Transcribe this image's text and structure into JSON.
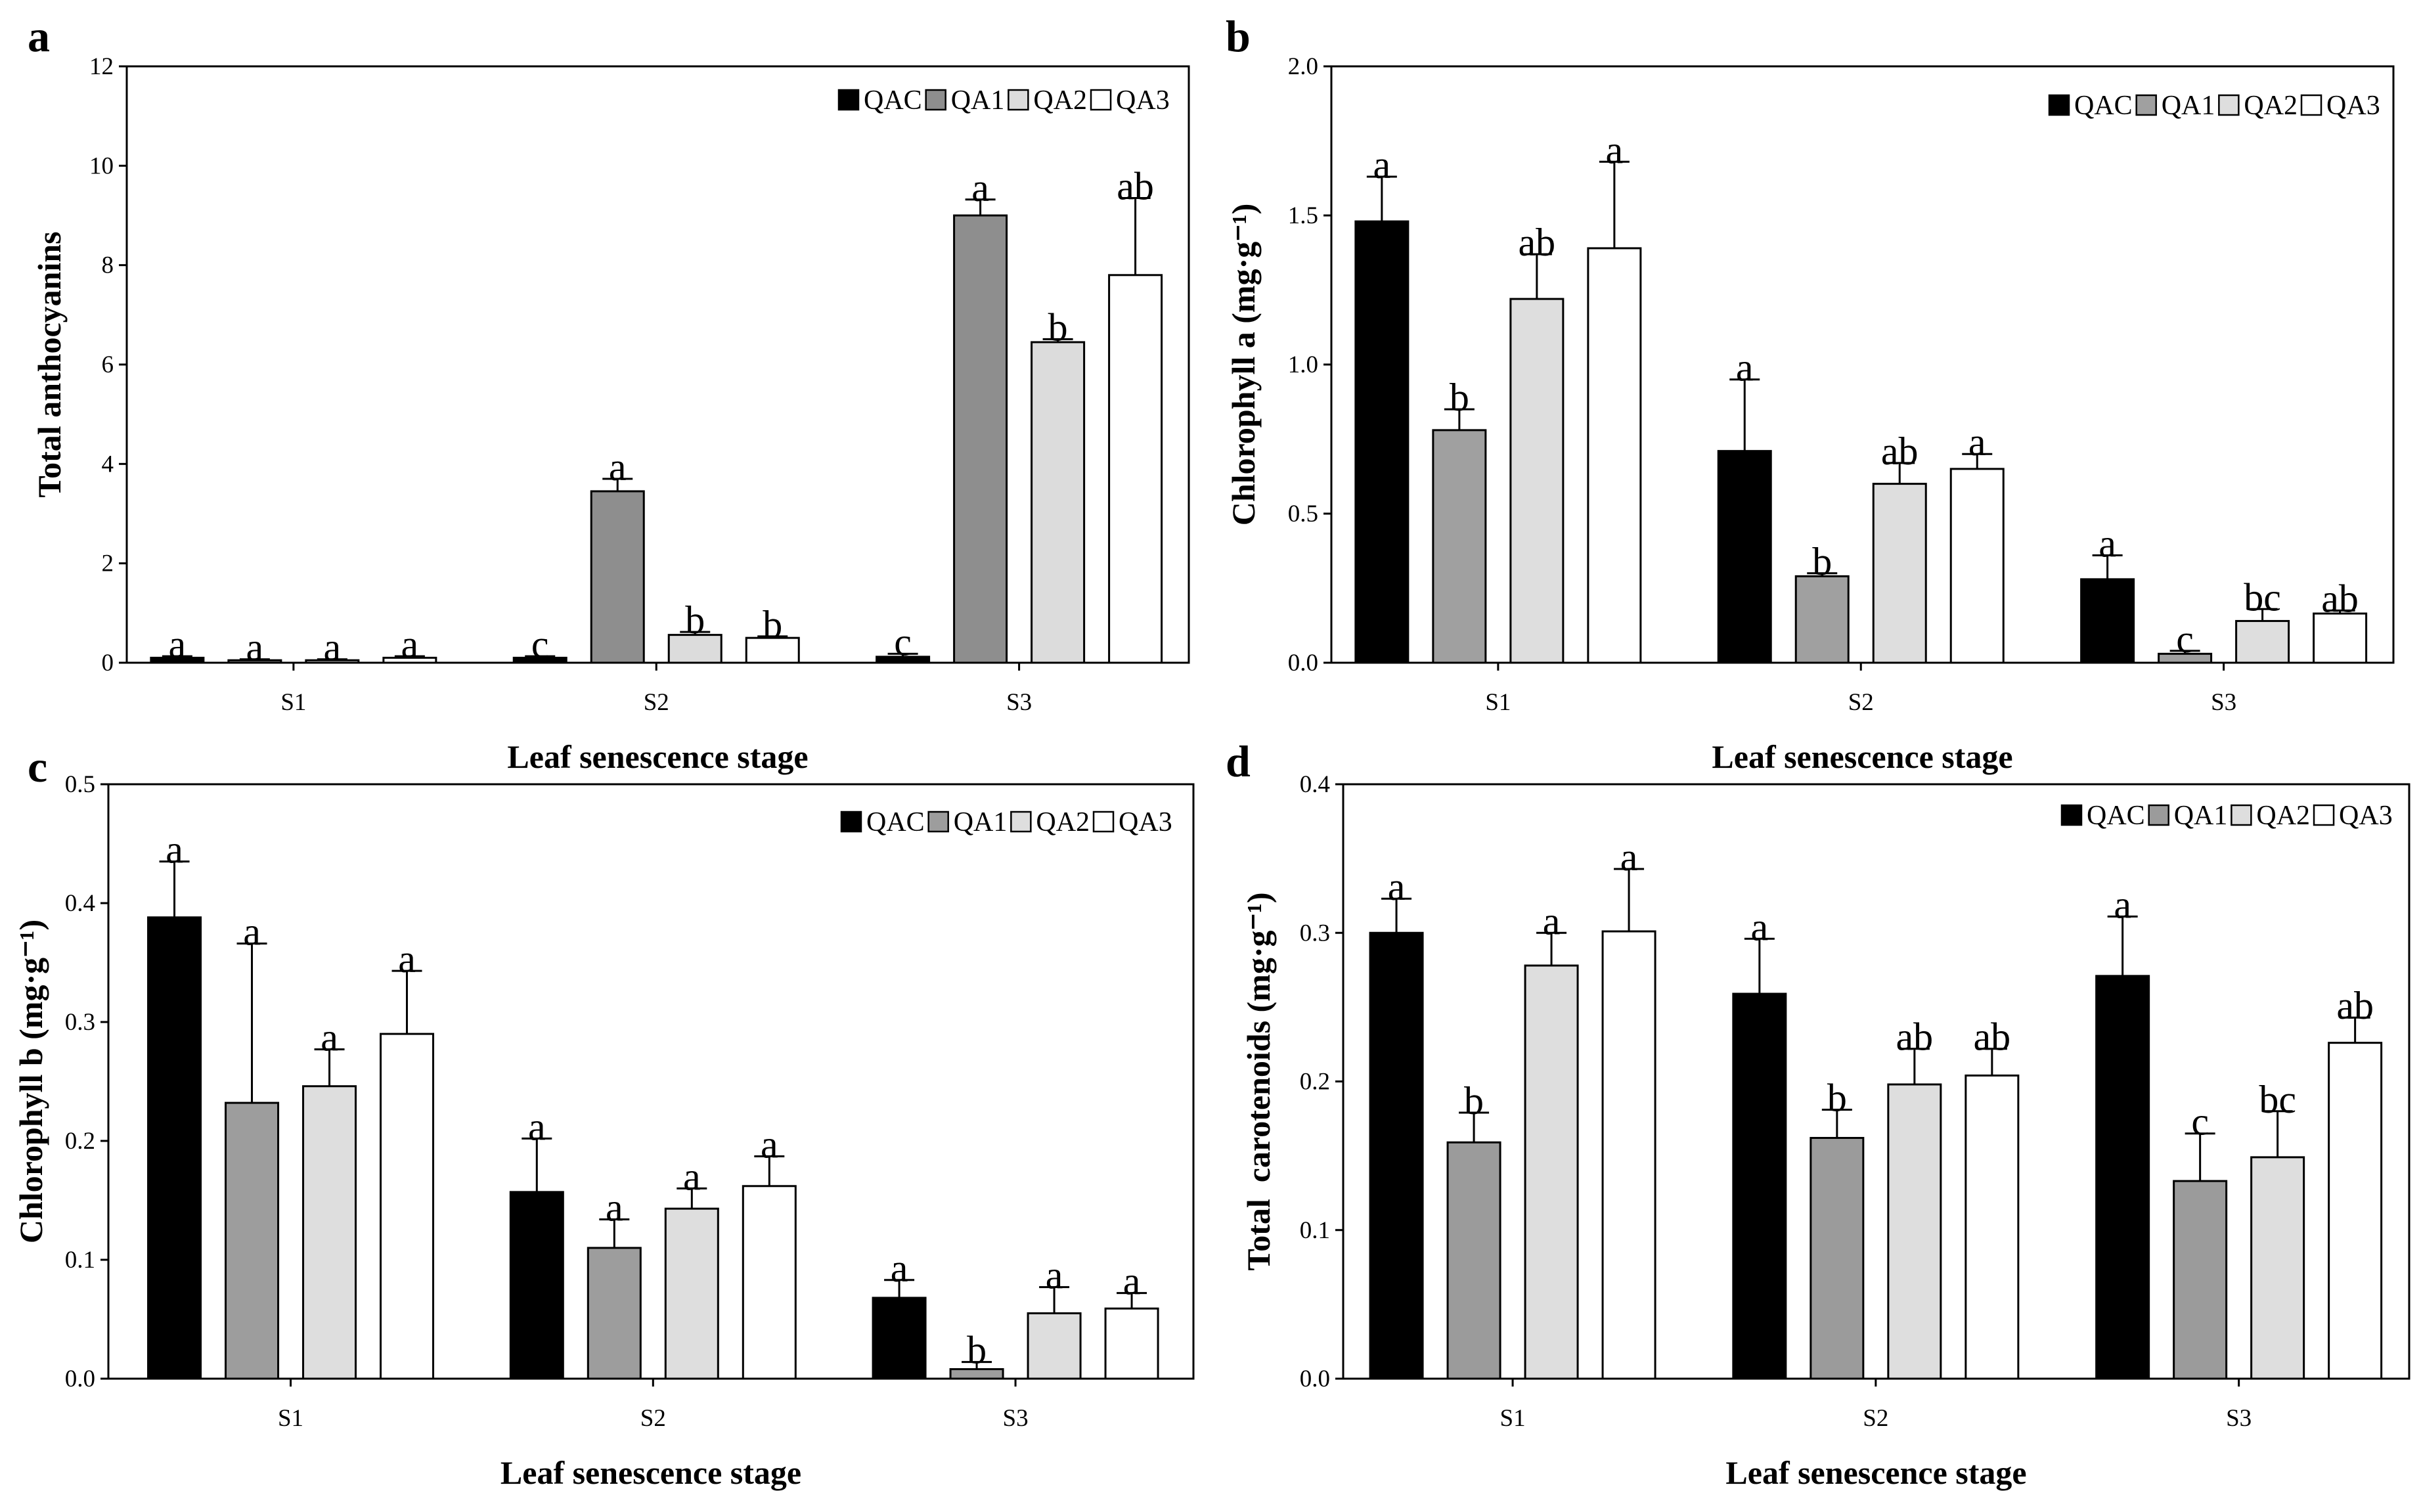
{
  "chart_data": [
    {
      "panel": "a",
      "type": "bar",
      "xlabel": "Leaf senescence stage",
      "ylabel": "Total anthocyanins",
      "ylim": [
        0,
        12
      ],
      "yticks": [
        "0",
        "2",
        "4",
        "6",
        "8",
        "10",
        "12"
      ],
      "grid": false,
      "categories": [
        "S1",
        "S2",
        "S3"
      ],
      "series": [
        {
          "name": "QAC",
          "color": "#000000",
          "values": [
            0.1,
            0.1,
            0.12
          ],
          "errors": [
            0.03,
            0.03,
            0.06
          ],
          "letters": [
            "a",
            "c",
            "c"
          ]
        },
        {
          "name": "QA1",
          "color": "#8e8e8e",
          "values": [
            0.05,
            3.45,
            9.0
          ],
          "errors": [
            0.02,
            0.25,
            0.32
          ],
          "letters": [
            "a",
            "a",
            "a"
          ]
        },
        {
          "name": "QA2",
          "color": "#dcdcdc",
          "values": [
            0.05,
            0.56,
            6.45
          ],
          "errors": [
            0.02,
            0.06,
            0.06
          ],
          "letters": [
            "a",
            "b",
            "b"
          ]
        },
        {
          "name": "QA3",
          "color": "#ffffff",
          "values": [
            0.1,
            0.5,
            7.8
          ],
          "errors": [
            0.03,
            0.03,
            1.55
          ],
          "letters": [
            "a",
            "b",
            "ab"
          ]
        }
      ]
    },
    {
      "panel": "b",
      "type": "bar",
      "xlabel": "Leaf senescence stage",
      "ylabel": "Chlorophyll a (mg·g⁻¹)",
      "ylim": [
        0,
        2.0
      ],
      "yticks": [
        "0.0",
        "0.5",
        "1.0",
        "1.5",
        "2.0"
      ],
      "grid": false,
      "categories": [
        "S1",
        "S2",
        "S3"
      ],
      "series": [
        {
          "name": "QAC",
          "color": "#000000",
          "values": [
            1.48,
            0.71,
            0.28
          ],
          "errors": [
            0.15,
            0.24,
            0.08
          ],
          "letters": [
            "a",
            "a",
            "a"
          ]
        },
        {
          "name": "QA1",
          "color": "#a0a0a0",
          "values": [
            0.78,
            0.29,
            0.03
          ],
          "errors": [
            0.07,
            0.01,
            0.01
          ],
          "letters": [
            "b",
            "b",
            "c"
          ]
        },
        {
          "name": "QA2",
          "color": "#dedede",
          "values": [
            1.22,
            0.6,
            0.14
          ],
          "errors": [
            0.15,
            0.07,
            0.04
          ],
          "letters": [
            "ab",
            "ab",
            "bc"
          ]
        },
        {
          "name": "QA3",
          "color": "#ffffff",
          "values": [
            1.39,
            0.65,
            0.165
          ],
          "errors": [
            0.29,
            0.05,
            0.01
          ],
          "letters": [
            "a",
            "a",
            "ab"
          ]
        }
      ]
    },
    {
      "panel": "c",
      "type": "bar",
      "xlabel": "Leaf senescence stage",
      "ylabel": "Chlorophyll b (mg·g⁻¹)",
      "ylim": [
        0,
        0.5
      ],
      "yticks": [
        "0.0",
        "0.1",
        "0.2",
        "0.3",
        "0.4",
        "0.5"
      ],
      "grid": false,
      "categories": [
        "S1",
        "S2",
        "S3"
      ],
      "series": [
        {
          "name": "QAC",
          "color": "#000000",
          "values": [
            0.388,
            0.157,
            0.068
          ],
          "errors": [
            0.047,
            0.045,
            0.015
          ],
          "letters": [
            "a",
            "a",
            "a"
          ]
        },
        {
          "name": "QA1",
          "color": "#9d9d9d",
          "values": [
            0.232,
            0.11,
            0.008
          ],
          "errors": [
            0.134,
            0.024,
            0.006
          ],
          "letters": [
            "a",
            "a",
            "b"
          ]
        },
        {
          "name": "QA2",
          "color": "#dedede",
          "values": [
            0.246,
            0.143,
            0.055
          ],
          "errors": [
            0.031,
            0.017,
            0.022
          ],
          "letters": [
            "a",
            "a",
            "a"
          ]
        },
        {
          "name": "QA3",
          "color": "#ffffff",
          "values": [
            0.29,
            0.162,
            0.059
          ],
          "errors": [
            0.053,
            0.025,
            0.013
          ],
          "letters": [
            "a",
            "a",
            "a"
          ]
        }
      ]
    },
    {
      "panel": "d",
      "type": "bar",
      "xlabel": "Leaf senescence stage",
      "ylabel": "Total  carotenoids (mg·g⁻¹)",
      "ylim": [
        0,
        0.4
      ],
      "yticks": [
        "0.0",
        "0.1",
        "0.2",
        "0.3",
        "0.4"
      ],
      "grid": false,
      "categories": [
        "S1",
        "S2",
        "S3"
      ],
      "series": [
        {
          "name": "QAC",
          "color": "#000000",
          "values": [
            0.3,
            0.259,
            0.271
          ],
          "errors": [
            0.023,
            0.037,
            0.04
          ],
          "letters": [
            "a",
            "a",
            "a"
          ]
        },
        {
          "name": "QA1",
          "color": "#9b9b9b",
          "values": [
            0.159,
            0.162,
            0.133
          ],
          "errors": [
            0.02,
            0.019,
            0.032
          ],
          "letters": [
            "b",
            "b",
            "c"
          ]
        },
        {
          "name": "QA2",
          "color": "#dedede",
          "values": [
            0.278,
            0.198,
            0.149
          ],
          "errors": [
            0.022,
            0.024,
            0.031
          ],
          "letters": [
            "a",
            "ab",
            "bc"
          ]
        },
        {
          "name": "QA3",
          "color": "#ffffff",
          "values": [
            0.301,
            0.204,
            0.226
          ],
          "errors": [
            0.042,
            0.018,
            0.017
          ],
          "letters": [
            "a",
            "ab",
            "ab"
          ]
        }
      ]
    }
  ]
}
